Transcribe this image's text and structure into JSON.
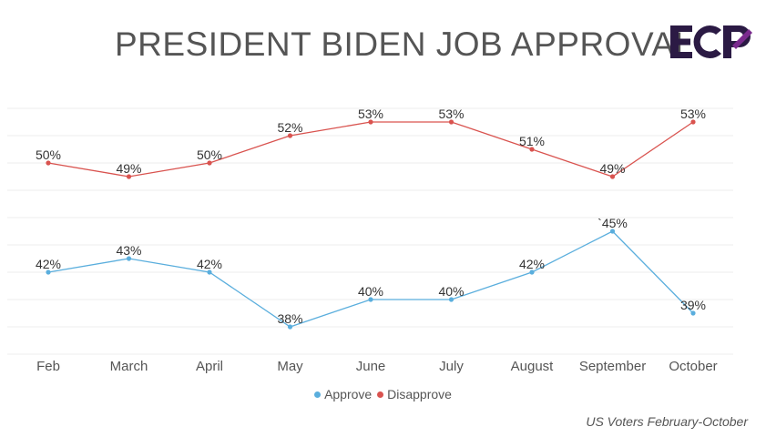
{
  "header": {
    "title": "PRESIDENT BIDEN JOB APPROVAL",
    "logo_text": "ECP"
  },
  "colors": {
    "approve": "#5aaedd",
    "disapprove": "#d9534f",
    "logo": "#2b1a44",
    "logo_accent": "#7a2a8e",
    "grid": "#ececec",
    "text": "#555555"
  },
  "legend": {
    "approve_label": "Approve",
    "disapprove_label": "Disapprove"
  },
  "footer": {
    "caption": "US Voters February-October"
  },
  "chart_data": {
    "type": "line",
    "categories": [
      "Feb",
      "March",
      "April",
      "May",
      "June",
      "July",
      "August",
      "September",
      "October"
    ],
    "series": [
      {
        "name": "Approve",
        "values": [
          42,
          43,
          42,
          38,
          40,
          40,
          42,
          45,
          39
        ],
        "labels": [
          "42%",
          "43%",
          "42%",
          "38%",
          "40%",
          "40%",
          "42%",
          "`45%",
          "39%"
        ]
      },
      {
        "name": "Disapprove",
        "values": [
          50,
          49,
          50,
          52,
          53,
          53,
          51,
          49,
          53
        ],
        "labels": [
          "50%",
          "49%",
          "50%",
          "52%",
          "53%",
          "53%",
          "51%",
          "49%",
          "53%"
        ]
      }
    ],
    "ylim": [
      36,
      55
    ],
    "grid": true,
    "legend_position": "bottom",
    "xlabel": "",
    "ylabel": ""
  }
}
